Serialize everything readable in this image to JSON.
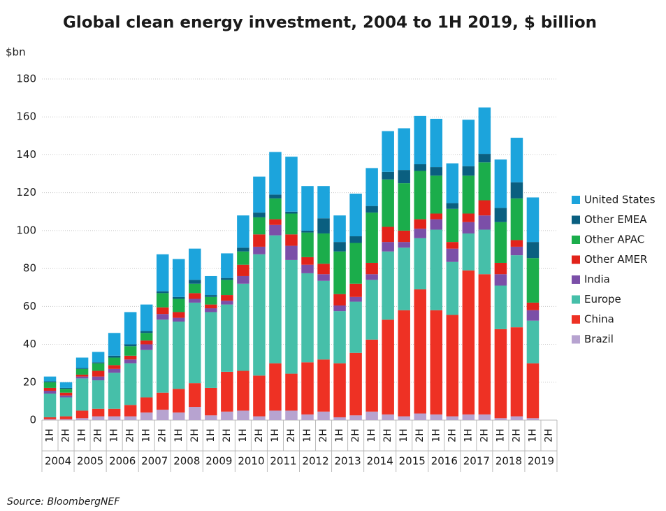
{
  "chart_data": {
    "type": "stacked_bar",
    "title": "Global clean energy investment, 2004 to 1H 2019, $ billion",
    "y_axis_label": "$bn",
    "source": "Source: BloombergNEF",
    "categories": [
      "1H",
      "2H",
      "1H",
      "2H",
      "1H",
      "2H",
      "1H",
      "2H",
      "1H",
      "2H",
      "1H",
      "2H",
      "1H",
      "2H",
      "1H",
      "2H",
      "1H",
      "2H",
      "1H",
      "2H",
      "1H",
      "2H",
      "1H",
      "2H",
      "1H",
      "2H",
      "1H",
      "2H",
      "1H",
      "2H",
      "1H",
      "2H"
    ],
    "category_groups": [
      "2004",
      "2005",
      "2006",
      "2007",
      "2008",
      "2009",
      "2010",
      "2011",
      "2012",
      "2013",
      "2014",
      "2015",
      "2016",
      "2017",
      "2018",
      "2019"
    ],
    "ylim": [
      0,
      180
    ],
    "yticks": [
      0,
      20,
      40,
      60,
      80,
      100,
      120,
      140,
      160,
      180
    ],
    "grid": true,
    "series": [
      {
        "name": "Brazil",
        "color": "#b7a3d0",
        "values": [
          0.5,
          0.5,
          1,
          2,
          2,
          2,
          4,
          5.5,
          4,
          7,
          2.5,
          4.5,
          5,
          2,
          5,
          5,
          3,
          4.5,
          1.5,
          2.5,
          4.5,
          3,
          2,
          3.5,
          3,
          2,
          3,
          3,
          1,
          2,
          1,
          null
        ]
      },
      {
        "name": "China",
        "color": "#ee3124",
        "values": [
          1,
          1.5,
          4,
          4,
          4,
          6,
          8,
          9,
          12.5,
          12.5,
          14.5,
          21,
          21,
          21.5,
          25,
          19.5,
          27.5,
          27.5,
          28.5,
          33,
          38,
          50,
          56,
          65.5,
          55,
          53.5,
          76,
          74,
          47,
          47,
          29,
          null
        ]
      },
      {
        "name": "Europe",
        "color": "#46bfa9",
        "values": [
          12.5,
          10,
          17,
          15,
          19,
          22,
          25,
          38.5,
          35.5,
          42.5,
          40,
          35.5,
          46,
          64,
          67.5,
          60,
          47,
          41.5,
          27.5,
          27,
          31.5,
          36,
          33,
          27,
          42.5,
          28,
          19.5,
          23.5,
          23,
          38,
          22.5,
          null
        ]
      },
      {
        "name": "India",
        "color": "#7b4fa8",
        "values": [
          1.5,
          1,
          1,
          2,
          2,
          2,
          3,
          3,
          2,
          2,
          2,
          2,
          4,
          4,
          5.5,
          7.5,
          4.5,
          3.5,
          3,
          2.5,
          3,
          5,
          3,
          5,
          5.5,
          7,
          6,
          7.5,
          6,
          4.5,
          5.5,
          null
        ]
      },
      {
        "name": "Other AMER",
        "color": "#e2231a",
        "values": [
          1.5,
          1.5,
          1,
          3,
          2,
          2,
          2,
          3.5,
          3,
          3,
          2,
          3,
          6,
          6.5,
          3,
          6,
          4,
          5.5,
          6,
          7,
          6,
          8,
          6,
          5,
          3,
          3.5,
          4.5,
          8,
          6,
          3.5,
          4,
          null
        ]
      },
      {
        "name": "Other APAC",
        "color": "#1bad4b",
        "values": [
          3,
          2,
          3,
          4,
          4,
          5,
          4,
          7.5,
          7,
          5,
          4,
          8,
          7,
          9,
          11,
          11,
          13,
          16,
          22.5,
          21.5,
          26.5,
          25,
          25,
          25.5,
          20,
          17.5,
          20,
          20,
          21.5,
          22,
          23.5,
          null
        ]
      },
      {
        "name": "Other EMEA",
        "color": "#0a5f80",
        "values": [
          0.5,
          0.5,
          0.5,
          0.5,
          1,
          1,
          1,
          1,
          1,
          2,
          1,
          1,
          2,
          2.5,
          2,
          1,
          1,
          8,
          5,
          3.5,
          3.5,
          4,
          7,
          3.5,
          4.5,
          3,
          5,
          4.5,
          7.5,
          8.5,
          8.5,
          null
        ]
      },
      {
        "name": "United States",
        "color": "#1ca4dc",
        "values": [
          2.5,
          3,
          5.5,
          5.5,
          12,
          17,
          14,
          19.5,
          20,
          16.5,
          10,
          13,
          17,
          19,
          22.5,
          29,
          23.5,
          17,
          14,
          22.5,
          20,
          21.5,
          22,
          25.5,
          25.5,
          21,
          24.5,
          24.5,
          25.5,
          23.5,
          23.5,
          null
        ]
      }
    ]
  }
}
